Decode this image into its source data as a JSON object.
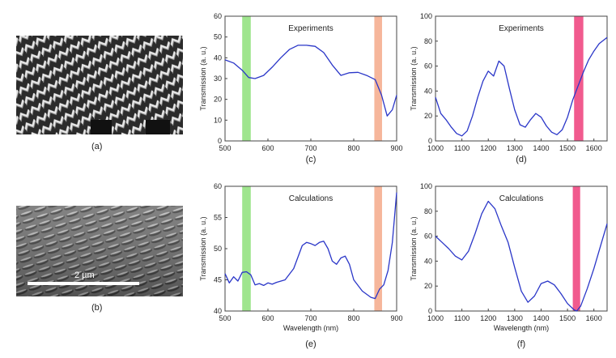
{
  "panels": {
    "a": {
      "label": "(a)"
    },
    "b": {
      "label": "(b)",
      "scale_bar_label": "2 µm"
    }
  },
  "colors": {
    "line": "#2a36c8",
    "green_band": "#8ee07a",
    "orange_band": "#f4a98a",
    "pink_band": "#ee3d7a",
    "axis": "#444444"
  },
  "chart_data": [
    {
      "id": "c",
      "type": "line",
      "panel_label": "(c)",
      "annotation": "Experiments",
      "xlabel": "",
      "ylabel": "Transmission (a. u.)",
      "xlim": [
        500,
        900
      ],
      "ylim": [
        0,
        60
      ],
      "xticks": [
        500,
        600,
        700,
        800,
        900
      ],
      "yticks": [
        0,
        10,
        20,
        30,
        40,
        50,
        60
      ],
      "bands": [
        {
          "from": 540,
          "to": 560,
          "color": "#8ee07a"
        },
        {
          "from": 848,
          "to": 866,
          "color": "#f4a98a"
        }
      ],
      "series": [
        {
          "x": [
            500,
            520,
            540,
            555,
            570,
            590,
            610,
            630,
            650,
            670,
            690,
            710,
            730,
            750,
            770,
            790,
            810,
            830,
            850,
            865,
            878,
            890,
            900
          ],
          "y": [
            39,
            37.5,
            34,
            30.5,
            30,
            31.5,
            35.5,
            40,
            44,
            46,
            46,
            45.5,
            42.5,
            36.5,
            31.5,
            32.8,
            33,
            31.5,
            29.5,
            22,
            12,
            15,
            22
          ]
        }
      ]
    },
    {
      "id": "d",
      "type": "line",
      "panel_label": "(d)",
      "annotation": "Experiments",
      "xlabel": "",
      "ylabel": "Transmission (a. u.)",
      "xlim": [
        1000,
        1650
      ],
      "ylim": [
        0,
        100
      ],
      "xticks": [
        1000,
        1100,
        1200,
        1300,
        1400,
        1500,
        1600
      ],
      "yticks": [
        0,
        20,
        40,
        60,
        80,
        100
      ],
      "bands": [
        {
          "from": 1525,
          "to": 1560,
          "color": "#ee3d7a"
        }
      ],
      "series": [
        {
          "x": [
            1000,
            1020,
            1040,
            1060,
            1080,
            1100,
            1120,
            1140,
            1160,
            1180,
            1200,
            1220,
            1240,
            1260,
            1280,
            1300,
            1320,
            1340,
            1360,
            1380,
            1400,
            1420,
            1440,
            1460,
            1480,
            1500,
            1520,
            1540,
            1560,
            1580,
            1600,
            1620,
            1650
          ],
          "y": [
            35,
            22,
            17,
            11,
            6,
            4,
            8,
            20,
            35,
            48,
            56,
            52,
            64,
            60,
            42,
            25,
            13,
            11,
            17,
            22,
            19,
            12,
            7,
            5,
            9,
            19,
            33,
            44,
            55,
            65,
            72,
            78,
            83
          ]
        }
      ]
    },
    {
      "id": "e",
      "type": "line",
      "panel_label": "(e)",
      "annotation": "Calculations",
      "xlabel": "Wavelength (nm)",
      "ylabel": "Transmission (a. u.)",
      "xlim": [
        500,
        900
      ],
      "ylim": [
        40,
        60
      ],
      "xticks": [
        500,
        600,
        700,
        800,
        900
      ],
      "yticks": [
        40,
        45,
        50,
        55,
        60
      ],
      "bands": [
        {
          "from": 540,
          "to": 560,
          "color": "#8ee07a"
        },
        {
          "from": 848,
          "to": 866,
          "color": "#f4a98a"
        }
      ],
      "series": [
        {
          "x": [
            500,
            510,
            520,
            530,
            540,
            550,
            560,
            570,
            580,
            590,
            600,
            610,
            620,
            640,
            660,
            680,
            690,
            700,
            710,
            720,
            730,
            740,
            750,
            760,
            770,
            780,
            790,
            800,
            820,
            840,
            850,
            860,
            870,
            880,
            890,
            900
          ],
          "y": [
            46,
            44.5,
            45.5,
            44.8,
            46.2,
            46.3,
            45.8,
            44.2,
            44.4,
            44.1,
            44.5,
            44.3,
            44.6,
            45,
            46.8,
            50.5,
            51,
            50.8,
            50.5,
            51,
            51.2,
            50,
            48,
            47.5,
            48.5,
            48.8,
            47.5,
            45,
            43.2,
            42.2,
            42,
            43.5,
            44.2,
            46.5,
            51,
            59
          ]
        }
      ]
    },
    {
      "id": "f",
      "type": "line",
      "panel_label": "(f)",
      "annotation": "Calculations",
      "xlabel": "Wavelength (nm)",
      "ylabel": "Transmission (a. u.)",
      "xlim": [
        1000,
        1650
      ],
      "ylim": [
        0,
        100
      ],
      "xticks": [
        1000,
        1100,
        1200,
        1300,
        1400,
        1500,
        1600
      ],
      "yticks": [
        0,
        20,
        40,
        60,
        80,
        100
      ],
      "bands": [
        {
          "from": 1520,
          "to": 1548,
          "color": "#ee3d7a"
        }
      ],
      "series": [
        {
          "x": [
            1000,
            1025,
            1050,
            1075,
            1100,
            1125,
            1150,
            1175,
            1200,
            1225,
            1250,
            1275,
            1300,
            1325,
            1350,
            1375,
            1400,
            1425,
            1450,
            1475,
            1500,
            1525,
            1535,
            1550,
            1575,
            1600,
            1625,
            1650
          ],
          "y": [
            60,
            55,
            50,
            44,
            41,
            48,
            62,
            78,
            88,
            82,
            68,
            55,
            35,
            16,
            7,
            12,
            22,
            24,
            21,
            14,
            6,
            1,
            0,
            4,
            18,
            34,
            52,
            70
          ]
        }
      ]
    }
  ]
}
